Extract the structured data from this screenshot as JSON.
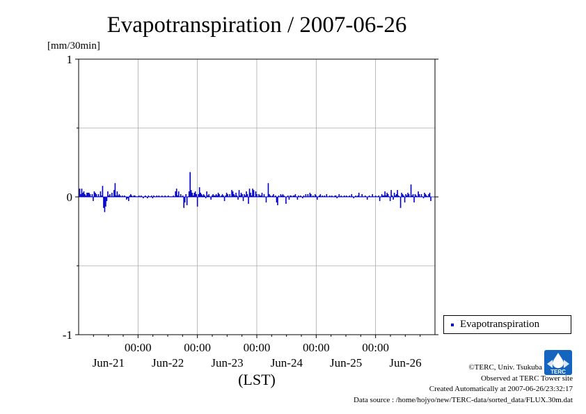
{
  "chart_data": {
    "type": "bar",
    "title": "Evapotranspiration / 2007-06-26",
    "ylabel": "[mm/30min]",
    "xlabel": "(LST)",
    "ylim": [
      -1,
      1
    ],
    "yticks": [
      {
        "value": 1,
        "label": "1"
      },
      {
        "value": 0,
        "label": "0"
      },
      {
        "value": -1,
        "label": "-1"
      }
    ],
    "xlim_hours": [
      0,
      144
    ],
    "xticks": [
      {
        "hour": 24,
        "time": "00:00",
        "day_label": "Jun-21"
      },
      {
        "hour": 48,
        "time": "00:00",
        "day_label": "Jun-22"
      },
      {
        "hour": 72,
        "time": "00:00",
        "day_label": "Jun-23"
      },
      {
        "hour": 96,
        "time": "00:00",
        "day_label": "Jun-24"
      },
      {
        "hour": 120,
        "time": "00:00",
        "day_label": "Jun-25"
      },
      {
        "hour": 144,
        "time": "",
        "day_label": "Jun-26"
      }
    ],
    "grid": true,
    "legend_position": "right",
    "series": [
      {
        "name": "Evapotranspiration",
        "color": "#0000cc",
        "values": [
          0.06,
          0.02,
          0.06,
          0.03,
          0.04,
          0.02,
          0.01,
          0.03,
          0.03,
          0.03,
          0.02,
          0.0,
          0.02,
          -0.03,
          0.04,
          0.03,
          0.02,
          0.0,
          0.02,
          0.0,
          0.04,
          0.01,
          0.08,
          -0.08,
          -0.11,
          -0.07,
          -0.03,
          0.04,
          0.01,
          0.02,
          0.0,
          0.03,
          0.0,
          0.05,
          0.1,
          0.01,
          0.04,
          0.01,
          0.02,
          0.01,
          0.0,
          0.01,
          0.0,
          0.01,
          0.0,
          -0.02,
          -0.01,
          -0.03,
          0.01,
          0.02,
          0.01,
          0.0,
          0.01,
          0.01,
          0.0,
          0.0,
          0.0,
          0.01,
          0.0,
          0.01,
          0.0,
          -0.01,
          0.0,
          0.01,
          0.0,
          -0.01,
          0.01,
          0.0,
          0.0,
          0.01,
          -0.01,
          0.01,
          0.0,
          0.0,
          0.01,
          0.0,
          0.01,
          0.0,
          0.0,
          0.01,
          0.0,
          0.0,
          0.01,
          0.0,
          0.0,
          0.01,
          0.0,
          0.0,
          0.0,
          0.0,
          0.01,
          0.0,
          0.04,
          0.06,
          0.01,
          0.04,
          0.0,
          0.02,
          0.0,
          0.01,
          -0.08,
          -0.04,
          0.02,
          -0.06,
          0.0,
          0.04,
          0.18,
          0.05,
          0.03,
          0.01,
          0.03,
          0.04,
          0.02,
          -0.07,
          0.02,
          0.07,
          0.03,
          0.02,
          0.01,
          0.02,
          0.01,
          -0.01,
          0.04,
          0.01,
          0.02,
          0.0,
          -0.02,
          0.01,
          0.02,
          0.01,
          0.01,
          0.02,
          0.01,
          0.03,
          0.02,
          0.0,
          0.01,
          0.02,
          0.01,
          -0.03,
          0.01,
          0.03,
          0.02,
          0.0,
          0.02,
          0.0,
          0.05,
          0.04,
          0.02,
          0.01,
          0.03,
          0.01,
          -0.02,
          0.05,
          0.01,
          0.03,
          0.02,
          -0.03,
          0.02,
          0.01,
          0.04,
          0.02,
          -0.05,
          0.06,
          0.03,
          0.01,
          0.06,
          0.05,
          0.0,
          0.04,
          0.02,
          0.0,
          0.02,
          0.01,
          0.01,
          0.03,
          0.0,
          0.02,
          0.0,
          -0.04,
          0.0,
          0.1,
          0.02,
          0.01,
          0.0,
          0.01,
          0.02,
          0.0,
          0.01,
          -0.04,
          -0.06,
          0.01,
          0.0,
          0.02,
          0.01,
          0.02,
          0.01,
          0.0,
          -0.05,
          0.0,
          0.01,
          -0.02,
          0.01,
          0.01,
          0.0,
          0.01,
          0.01,
          0.02,
          0.0,
          -0.02,
          0.01,
          0.0,
          0.01,
          0.0,
          -0.01,
          0.01,
          0.0,
          0.02,
          0.0,
          0.02,
          0.0,
          0.03,
          0.02,
          0.0,
          0.01,
          0.0,
          0.02,
          0.01,
          -0.02,
          0.0,
          0.01,
          0.02,
          0.0,
          0.01,
          0.0,
          0.01,
          0.0,
          0.02,
          0.0,
          0.0,
          0.01,
          0.0,
          0.01,
          0.0,
          0.0,
          0.01,
          0.01,
          -0.01,
          0.0,
          0.02,
          0.0,
          0.01,
          0.0,
          0.0,
          0.01,
          0.0,
          0.01,
          0.0,
          0.0,
          0.01,
          0.0,
          0.02,
          0.0,
          -0.01,
          0.0,
          0.01,
          0.0,
          0.01,
          0.03,
          0.0,
          0.0,
          0.02,
          0.0,
          0.0,
          0.01,
          0.0,
          -0.02,
          0.0,
          0.01,
          0.0,
          0.0,
          0.02,
          0.0,
          0.0,
          0.01,
          0.0,
          0.0,
          0.01,
          -0.03,
          0.0,
          0.02,
          0.01,
          0.01,
          0.04,
          0.01,
          0.03,
          0.02,
          0.0,
          -0.03,
          0.05,
          0.01,
          -0.02,
          0.03,
          0.01,
          0.02,
          0.05,
          0.01,
          0.0,
          -0.08,
          0.03,
          0.02,
          0.01,
          -0.04,
          0.02,
          0.01,
          0.03,
          0.02,
          0.0,
          0.09,
          0.01,
          0.02,
          -0.04,
          0.02,
          0.01,
          0.0,
          0.04,
          0.02,
          0.0,
          0.02,
          0.0,
          -0.01,
          0.03,
          0.02,
          0.01,
          0.0,
          0.02,
          0.03,
          -0.03
        ]
      }
    ]
  },
  "credits": {
    "copyright": "©TERC, Univ. Tsukuba",
    "observed": "Observed at TERC Tower site",
    "created": "Created Automatically at 2007-06-26/23:32:17",
    "source": "Data source : /home/hojyo/new/TERC-data/sorted_data/FLUX.30m.dat"
  },
  "logo": {
    "text": "TERC",
    "color": "#1565c0"
  }
}
